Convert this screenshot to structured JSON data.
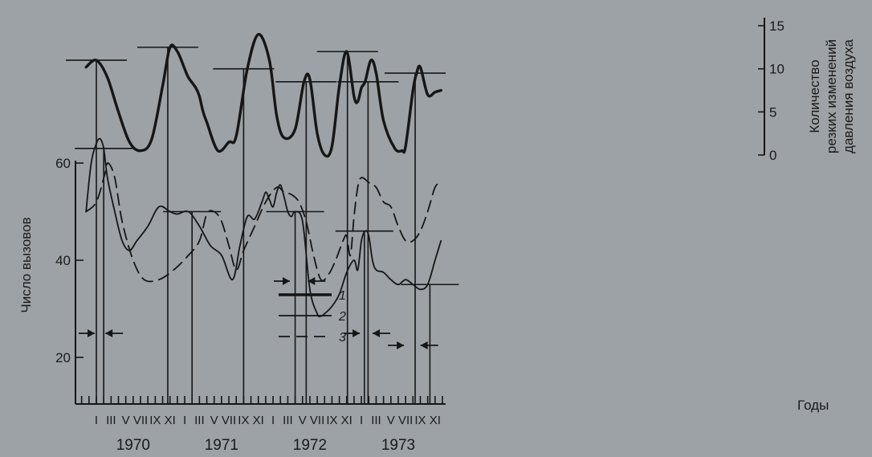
{
  "chart_data": {
    "type": "line",
    "title": "",
    "xlabel": "Годы",
    "ylabel_left": "Число вызовов",
    "ylabel_right": "Количество резких изменений давления воздуха",
    "x_months": [
      "I",
      "III",
      "V",
      "VII",
      "IX",
      "XI",
      "I",
      "III",
      "V",
      "VII",
      "IX",
      "XI",
      "I",
      "III",
      "V",
      "VII",
      "IX",
      "XI",
      "I",
      "III",
      "V",
      "VII",
      "IX",
      "XI"
    ],
    "x_years": [
      "1970",
      "1971",
      "1972",
      "1973"
    ],
    "x_range": [
      0,
      47
    ],
    "y_left": {
      "ticks": [
        "20",
        "40",
        "60"
      ],
      "range": [
        10,
        70
      ]
    },
    "y_right": {
      "ticks": [
        "0",
        "5",
        "10",
        "15"
      ],
      "range": [
        0,
        15
      ]
    },
    "legend": [
      "1",
      "2",
      "3"
    ],
    "legend_placement": "center",
    "grid": false,
    "series": [
      {
        "name": "1",
        "axis": "right",
        "style": "solid-thick",
        "x": [
          -1.4,
          0.0,
          1.5,
          3.0,
          4.5,
          6.0,
          7.5,
          9.0,
          10.0,
          11.0,
          12.0,
          12.5,
          13.5,
          14.0,
          14.5,
          15.0,
          16.5,
          18.0,
          19.0,
          20.5,
          22.0,
          23.5,
          24.5,
          25.5,
          27.0,
          28.2,
          29.0,
          30.0,
          31.0,
          32.0,
          33.0,
          34.0,
          35.0,
          35.5,
          36.0,
          36.5,
          37.3,
          38.0,
          39.0,
          40.5,
          41.5,
          42.0,
          43.0,
          43.5,
          44.0,
          45.0,
          46.0,
          46.8
        ],
        "y": [
          10.2,
          11.0,
          9.0,
          5.0,
          1.5,
          0.5,
          1.8,
          8.0,
          12.5,
          12.0,
          10.0,
          9.0,
          7.8,
          6.8,
          5.0,
          3.8,
          0.5,
          1.5,
          2.2,
          10.0,
          14.0,
          11.0,
          4.5,
          2.0,
          3.0,
          8.5,
          8.8,
          2.5,
          0.0,
          1.0,
          8.0,
          12.0,
          6.8,
          6.2,
          7.8,
          8.5,
          11.0,
          9.5,
          4.0,
          0.8,
          0.5,
          1.0,
          7.5,
          9.5,
          10.2,
          7.0,
          7.3,
          7.5
        ]
      },
      {
        "name": "2",
        "axis": "left",
        "style": "solid-thin",
        "x": [
          -1.4,
          -0.7,
          0.0,
          0.5,
          1.0,
          1.5,
          2.5,
          3.5,
          4.5,
          5.5,
          7.0,
          8.5,
          10.0,
          11.0,
          12.5,
          14.0,
          15.5,
          17.0,
          18.5,
          19.5,
          20.5,
          21.5,
          22.5,
          23.0,
          23.5,
          24.0,
          24.5,
          25.0,
          25.5,
          26.0,
          26.5,
          27.0,
          28.0,
          29.0,
          30.0,
          30.5,
          31.0,
          32.0,
          33.0,
          34.0,
          35.0,
          35.5,
          36.0,
          36.5,
          37.0,
          37.5,
          38.0,
          39.0,
          40.0,
          41.0,
          42.0,
          43.0,
          44.0,
          45.0,
          46.0,
          46.8
        ],
        "y": [
          50.0,
          60.0,
          64.0,
          65.0,
          63.0,
          57.0,
          50.0,
          44.0,
          42.0,
          44.0,
          47.0,
          51.0,
          50.0,
          49.5,
          50.0,
          47.0,
          43.0,
          41.0,
          36.0,
          43.0,
          49.0,
          48.5,
          52.0,
          54.0,
          52.5,
          51.0,
          54.0,
          55.5,
          53.0,
          50.0,
          49.0,
          50.0,
          48.0,
          34.0,
          29.0,
          28.5,
          29.0,
          30.5,
          33.0,
          37.5,
          40.0,
          38.0,
          44.0,
          46.0,
          45.0,
          40.0,
          38.0,
          37.5,
          36.0,
          35.0,
          36.0,
          35.0,
          34.0,
          35.0,
          40.0,
          44.0
        ]
      },
      {
        "name": "3",
        "axis": "left",
        "style": "dashed",
        "x": [
          -1.4,
          0.0,
          1.2,
          1.6,
          2.5,
          3.5,
          5.0,
          6.5,
          8.5,
          10.5,
          12.5,
          14.0,
          15.0,
          16.0,
          17.0,
          18.0,
          19.0,
          20.0,
          21.5,
          23.0,
          24.5,
          25.5,
          26.5,
          27.5,
          28.5,
          29.5,
          30.5,
          31.5,
          32.5,
          33.5,
          34.0,
          34.5,
          35.0,
          35.5,
          36.0,
          37.0,
          38.0,
          39.0,
          40.0,
          41.0,
          42.0,
          43.0,
          44.0,
          45.0,
          46.0,
          46.8
        ],
        "y": [
          50.0,
          52.0,
          58.0,
          60.0,
          57.0,
          48.0,
          40.0,
          36.0,
          36.0,
          38.0,
          41.0,
          44.0,
          49.5,
          50.0,
          48.0,
          43.0,
          38.0,
          42.0,
          47.0,
          52.0,
          55.0,
          54.0,
          53.5,
          52.0,
          48.0,
          41.0,
          36.0,
          37.0,
          40.0,
          44.0,
          45.0,
          41.0,
          49.0,
          55.0,
          57.0,
          56.0,
          55.0,
          52.0,
          51.0,
          47.0,
          44.0,
          44.0,
          46.0,
          50.0,
          55.0,
          56.0
        ]
      }
    ],
    "peak_markers": {
      "right_axis_peaks": [
        0.0,
        9.7,
        20.0,
        28.5,
        34.1,
        36.9,
        43.3
      ],
      "left_axis_peaks": [
        1.0,
        13.0,
        27.0,
        36.4,
        45.3
      ],
      "arrows": [
        [
          0.0,
          1.0
        ],
        [
          26.5,
          28.5
        ],
        [
          36.0,
          37.3
        ],
        [
          42.0,
          43.8
        ]
      ]
    }
  }
}
